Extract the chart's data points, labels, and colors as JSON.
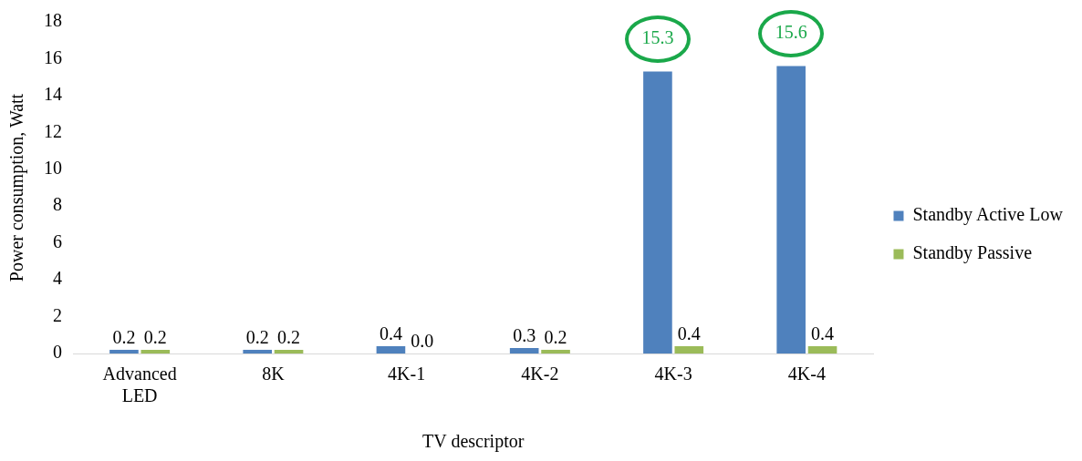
{
  "chart_data": {
    "type": "bar",
    "categories": [
      "Advanced LED",
      "8K",
      "4K-1",
      "4K-2",
      "4K-3",
      "4K-4"
    ],
    "xlabel": "TV descriptor",
    "ylabel": "Power consumption, Watt",
    "series": [
      {
        "name": "Standby Active Low",
        "color": "#4f81bd",
        "values": [
          0.2,
          0.2,
          0.4,
          0.3,
          15.3,
          15.6
        ],
        "value_labels": [
          "0.2",
          "0.2",
          "0.4",
          "0.3",
          null,
          null
        ]
      },
      {
        "name": "Standby Passive",
        "color": "#9bbb59",
        "values": [
          0.2,
          0.2,
          0.0,
          0.2,
          0.4,
          0.4
        ],
        "value_labels": [
          "0.2",
          "0.2",
          "0.0",
          "0.2",
          "0.4",
          "0.4"
        ]
      }
    ],
    "annotations": [
      {
        "text": "15.3",
        "x": "4K-3",
        "y": 15.3
      },
      {
        "text": "15.6",
        "x": "4K-4",
        "y": 15.6
      }
    ],
    "ylim": [
      0,
      18
    ],
    "yticks": [
      0,
      2,
      4,
      6,
      8,
      10,
      12,
      14,
      16,
      18
    ],
    "grid": false,
    "legend": "right"
  }
}
